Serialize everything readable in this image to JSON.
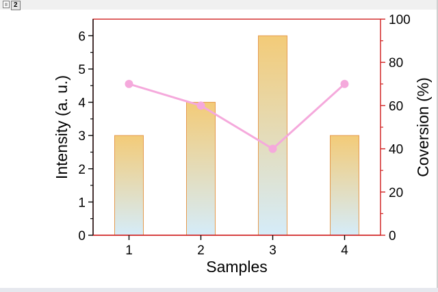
{
  "window": {
    "tab_number": "2"
  },
  "chart_data": {
    "type": "bar",
    "categories": [
      "1",
      "2",
      "3",
      "4"
    ],
    "series": [
      {
        "values": [
          3,
          4,
          6,
          3
        ],
        "axis": "left",
        "kind": "bar"
      },
      {
        "values": [
          70,
          60,
          40,
          70
        ],
        "axis": "right",
        "kind": "line"
      }
    ],
    "xlabel": "Samples",
    "ylabel": "Intensity (a. u.)",
    "y2label": "Coversion (%)",
    "ylim": [
      0,
      6.5
    ],
    "y2lim": [
      0,
      100
    ],
    "yticks": [
      "0",
      "1",
      "2",
      "3",
      "4",
      "5",
      "6"
    ],
    "y2ticks": [
      "0",
      "20",
      "40",
      "60",
      "80",
      "100"
    ],
    "grid": false,
    "colors": {
      "bar_top": "#f3cb78",
      "bar_bottom": "#d5ecf9",
      "bar_edge": "#e59a4e",
      "line": "#f5a9dc",
      "axes_frame": "#d02020"
    }
  }
}
